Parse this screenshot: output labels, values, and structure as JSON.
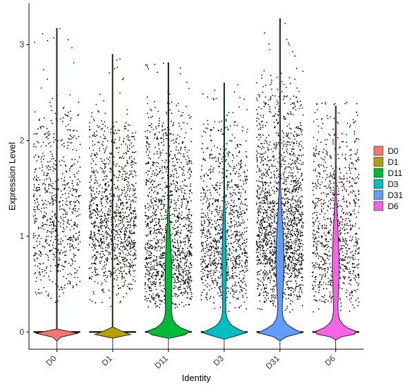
{
  "chart_data": {
    "type": "violin",
    "xlabel": "Identity",
    "ylabel": "Expression Level",
    "ylim": [
      -0.18,
      3.43
    ],
    "yticks": [
      "0",
      "1",
      "2",
      "3"
    ],
    "categories": [
      "D0",
      "D1",
      "D11",
      "D3",
      "D31",
      "D6"
    ],
    "colors": [
      "#F8766D",
      "#B79F00",
      "#00BA38",
      "#00BFC4",
      "#619CFF",
      "#F564E3"
    ],
    "max_values": [
      3.17,
      2.9,
      2.81,
      2.6,
      3.27,
      2.36
    ],
    "zero_fraction": [
      0.98,
      0.98,
      0.3,
      0.55,
      0.18,
      0.3
    ],
    "nonzero_range": [
      [
        0.25,
        2.6
      ],
      [
        0.25,
        2.4
      ],
      [
        0.2,
        2.6
      ],
      [
        0.2,
        2.4
      ],
      [
        0.2,
        2.8
      ],
      [
        0.2,
        2.4
      ]
    ],
    "nonzero_mode": [
      1.0,
      1.0,
      0.55,
      0.7,
      0.75,
      0.7
    ],
    "cell_counts": [
      700,
      1100,
      1350,
      1050,
      1750,
      900
    ],
    "legend": {
      "position": "right",
      "entries": [
        "D0",
        "D1",
        "D11",
        "D3",
        "D31",
        "D6"
      ]
    },
    "grid": false
  }
}
